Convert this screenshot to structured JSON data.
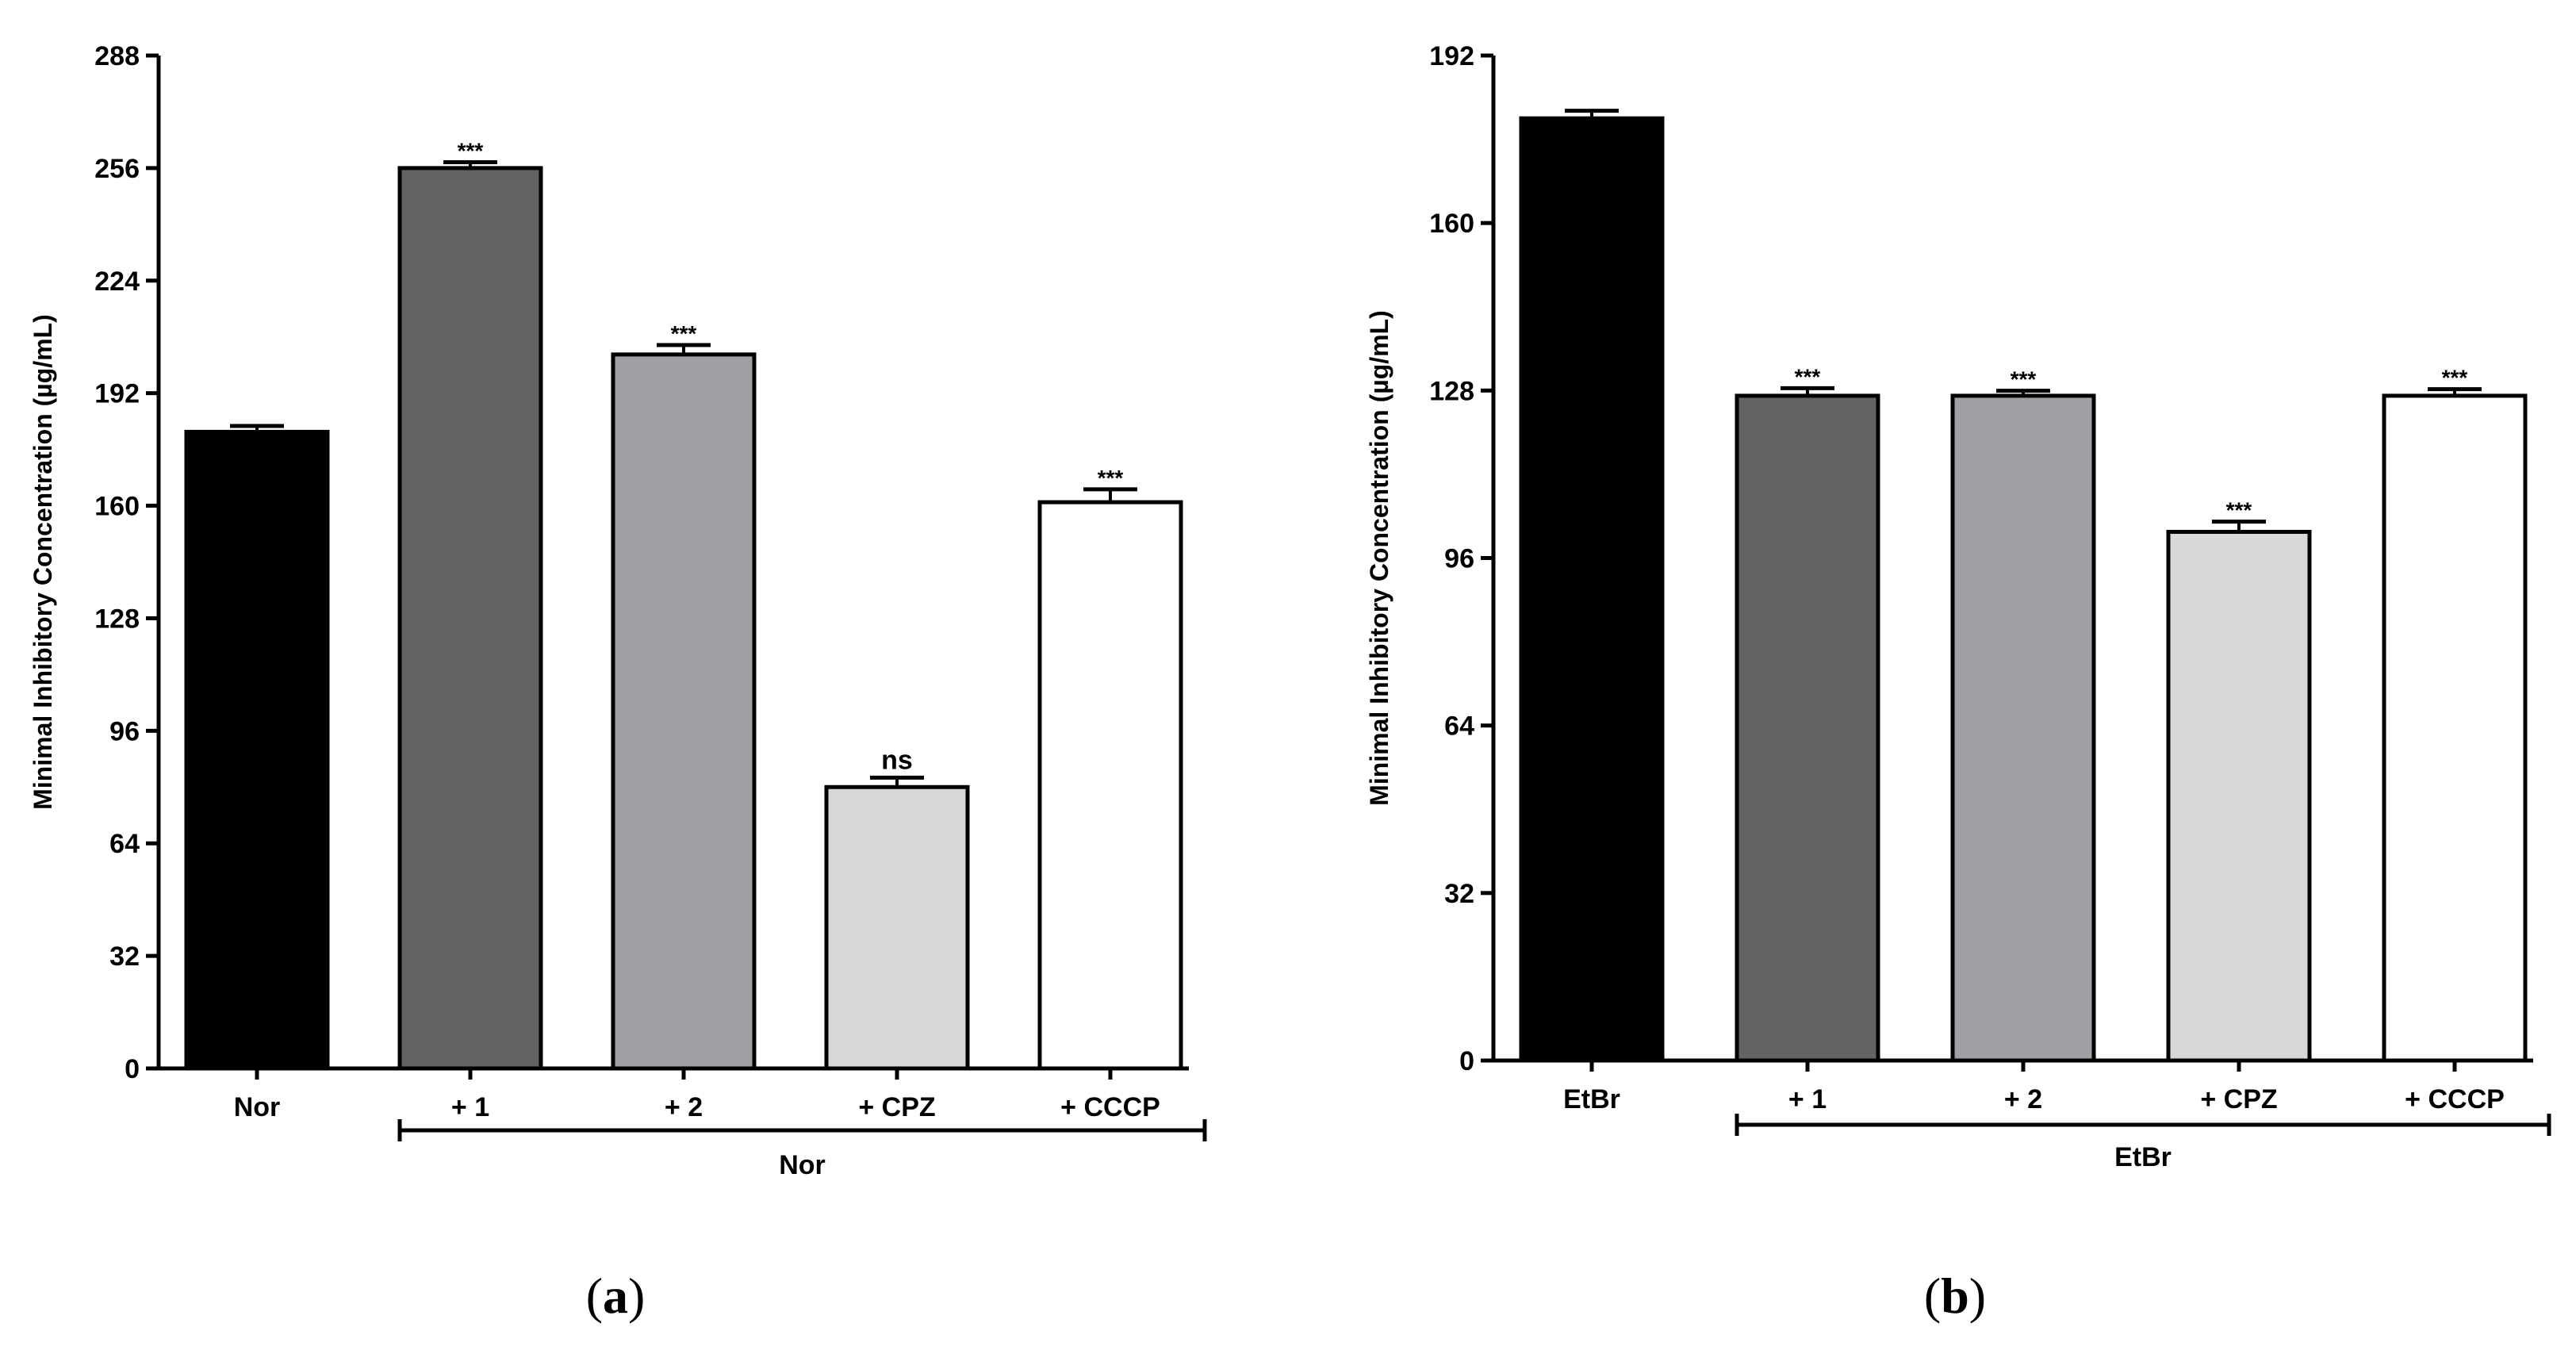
{
  "chart_data": [
    {
      "panel": "a",
      "type": "bar",
      "ylabel": "Minimal Inhibitory Concentration (µg/mL)",
      "ylim": [
        0,
        288
      ],
      "yticks": [
        0,
        32,
        64,
        96,
        128,
        160,
        192,
        224,
        256,
        288
      ],
      "categories": [
        "Nor",
        "+ 1",
        "+ 2",
        "+ CPZ",
        "+ CCCP"
      ],
      "values": [
        181,
        256,
        203,
        80,
        161
      ],
      "errors": [
        1,
        1,
        2,
        2,
        3
      ],
      "fills": [
        "#000000",
        "#636363",
        "#a0a0a4",
        "#d7d7d7",
        "#ffffff"
      ],
      "significance": [
        "",
        "***",
        "***",
        "ns",
        "***"
      ],
      "group_label": "Nor",
      "group_range": [
        1,
        4
      ],
      "panel_label": "a"
    },
    {
      "panel": "b",
      "type": "bar",
      "ylabel": "Minimal Inhibitory Concentration (µg/mL)",
      "ylim": [
        0,
        192
      ],
      "yticks": [
        0,
        32,
        64,
        96,
        128,
        160,
        192
      ],
      "categories": [
        "EtBr",
        "+ 1",
        "+ 2",
        "+ CPZ",
        "+ CCCP"
      ],
      "values": [
        180,
        127,
        127,
        101,
        127
      ],
      "errors": [
        1,
        1,
        0.5,
        1.5,
        0.8
      ],
      "fills": [
        "#000000",
        "#636363",
        "#a0a0a4",
        "#d7d7d7",
        "#ffffff"
      ],
      "significance": [
        "",
        "***",
        "***",
        "***",
        "***"
      ],
      "group_label": "EtBr",
      "group_range": [
        1,
        4
      ],
      "panel_label": "b"
    }
  ]
}
